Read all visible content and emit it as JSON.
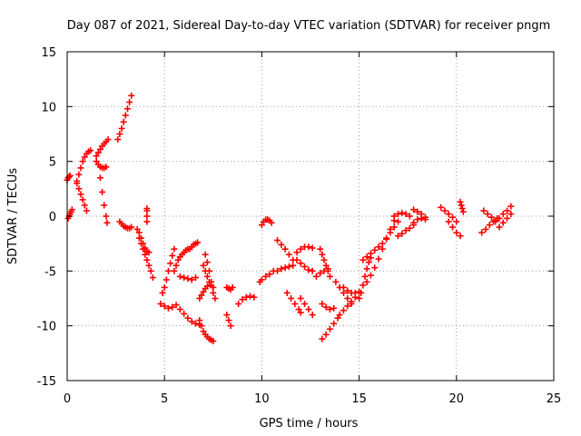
{
  "chart_data": {
    "type": "scatter",
    "title": "Day 087 of 2021, Sidereal Day-to-day VTEC variation (SDTVAR) for receiver pngm",
    "xlabel": "GPS time / hours",
    "ylabel": "SDTVAR / TECUs",
    "xlim": [
      0,
      25
    ],
    "ylim": [
      -15,
      15
    ],
    "xticks": [
      "0",
      "5",
      "10",
      "15",
      "20",
      "25"
    ],
    "yticks": [
      "-15",
      "-10",
      "-5",
      "0",
      "5",
      "10",
      "15"
    ],
    "xtick_values": [
      0,
      5,
      10,
      15,
      20,
      25
    ],
    "ytick_values": [
      -15,
      -10,
      -5,
      0,
      5,
      10,
      15
    ],
    "grid": true,
    "marker": "+",
    "series": [
      {
        "name": "SDTVAR",
        "color": "#ff0000",
        "arcs": [
          {
            "x": [
              0.0,
              0.05,
              0.1,
              0.15
            ],
            "y": [
              3.3,
              3.5,
              3.6,
              3.7
            ]
          },
          {
            "x": [
              0.05,
              0.1,
              0.15,
              0.2,
              0.25
            ],
            "y": [
              -0.2,
              0.0,
              0.2,
              0.4,
              0.6
            ]
          },
          {
            "x": [
              0.5,
              0.6,
              0.7,
              0.8,
              0.9,
              1.0,
              1.1,
              1.2
            ],
            "y": [
              3.2,
              3.8,
              4.4,
              5.0,
              5.4,
              5.7,
              5.9,
              6.0
            ]
          },
          {
            "x": [
              0.5,
              0.6,
              0.7,
              0.8,
              0.9,
              1.0
            ],
            "y": [
              3.0,
              2.5,
              2.0,
              1.5,
              1.0,
              0.5
            ]
          },
          {
            "x": [
              1.5,
              1.6,
              1.7,
              1.8,
              1.9,
              2.0,
              2.1
            ],
            "y": [
              5.5,
              5.8,
              6.1,
              6.4,
              6.6,
              6.8,
              7.0
            ]
          },
          {
            "x": [
              1.5,
              1.6,
              1.7,
              1.8,
              1.9,
              2.0
            ],
            "y": [
              5.0,
              4.7,
              4.5,
              4.4,
              4.4,
              4.5
            ]
          },
          {
            "x": [
              1.7,
              1.8,
              1.9,
              2.0,
              2.05
            ],
            "y": [
              3.5,
              2.2,
              1.0,
              0.0,
              -0.6
            ]
          },
          {
            "x": [
              2.6,
              2.7,
              2.8,
              2.9,
              3.0,
              3.1,
              3.2,
              3.3
            ],
            "y": [
              7.0,
              7.5,
              8.0,
              8.6,
              9.2,
              9.8,
              10.4,
              11.0
            ]
          },
          {
            "x": [
              2.7,
              2.8,
              2.9,
              3.0,
              3.1,
              3.2,
              3.3
            ],
            "y": [
              -0.5,
              -0.7,
              -0.9,
              -1.0,
              -1.1,
              -1.1,
              -1.0
            ]
          },
          {
            "x": [
              3.7,
              3.8,
              3.9,
              4.0,
              4.1,
              4.2,
              4.3,
              4.4
            ],
            "y": [
              -2.0,
              -2.5,
              -3.0,
              -3.5,
              -4.0,
              -4.5,
              -5.0,
              -5.6
            ]
          },
          {
            "x": [
              3.6,
              3.7,
              3.8,
              3.9,
              4.0,
              4.1,
              4.2
            ],
            "y": [
              -1.2,
              -1.5,
              -2.0,
              -2.5,
              -2.9,
              -3.2,
              -3.3
            ]
          },
          {
            "x": [
              4.1,
              4.1,
              4.1,
              4.1
            ],
            "y": [
              -0.5,
              0.0,
              0.5,
              0.7
            ]
          },
          {
            "x": [
              4.8,
              5.0,
              5.2,
              5.4,
              5.6
            ],
            "y": [
              -8.0,
              -8.2,
              -8.4,
              -8.3,
              -8.1
            ]
          },
          {
            "x": [
              4.9,
              5.0,
              5.1,
              5.2,
              5.3,
              5.4,
              5.5
            ],
            "y": [
              -7.0,
              -6.5,
              -5.8,
              -5.0,
              -4.3,
              -3.6,
              -3.0
            ]
          },
          {
            "x": [
              5.8,
              6.0,
              6.2,
              6.4,
              6.6,
              6.8
            ],
            "y": [
              -8.5,
              -8.9,
              -9.3,
              -9.6,
              -9.8,
              -9.9
            ]
          },
          {
            "x": [
              5.5,
              5.6,
              5.7,
              5.8,
              5.9,
              6.0,
              6.1,
              6.2
            ],
            "y": [
              -5.0,
              -4.5,
              -4.0,
              -3.7,
              -3.5,
              -3.3,
              -3.1,
              -3.0
            ]
          },
          {
            "x": [
              5.8,
              6.0,
              6.2,
              6.4,
              6.6
            ],
            "y": [
              -5.5,
              -5.6,
              -5.7,
              -5.8,
              -5.6
            ]
          },
          {
            "x": [
              6.3,
              6.4,
              6.5,
              6.6,
              6.7
            ],
            "y": [
              -3.0,
              -2.8,
              -2.6,
              -2.5,
              -2.4
            ]
          },
          {
            "x": [
              7.0,
              7.1,
              7.2,
              7.3,
              7.4,
              7.5
            ],
            "y": [
              -4.5,
              -5.0,
              -5.5,
              -6.0,
              -6.3,
              -6.5
            ]
          },
          {
            "x": [
              7.1,
              7.2,
              7.3,
              7.4,
              7.5,
              7.6
            ],
            "y": [
              -3.5,
              -4.2,
              -5.0,
              -6.0,
              -7.0,
              -7.5
            ]
          },
          {
            "x": [
              6.8,
              6.9,
              7.0,
              7.1,
              7.2,
              7.3,
              7.4,
              7.5
            ],
            "y": [
              -9.5,
              -10.0,
              -10.5,
              -10.8,
              -11.0,
              -11.2,
              -11.3,
              -11.4
            ]
          },
          {
            "x": [
              6.8,
              6.9,
              7.0,
              7.1,
              7.2
            ],
            "y": [
              -7.5,
              -7.2,
              -6.9,
              -6.6,
              -6.4
            ]
          },
          {
            "x": [
              8.2,
              8.3,
              8.4,
              8.5
            ],
            "y": [
              -6.5,
              -6.6,
              -6.7,
              -6.5
            ]
          },
          {
            "x": [
              8.2,
              8.3,
              8.4
            ],
            "y": [
              -9.0,
              -9.5,
              -10.0
            ]
          },
          {
            "x": [
              8.8,
              9.0,
              9.2,
              9.4,
              9.6
            ],
            "y": [
              -8.0,
              -7.6,
              -7.4,
              -7.3,
              -7.4
            ]
          },
          {
            "x": [
              9.9,
              10.0,
              10.2,
              10.4,
              10.6
            ],
            "y": [
              -6.0,
              -5.8,
              -5.5,
              -5.3,
              -5.0
            ]
          },
          {
            "x": [
              10.0,
              10.1,
              10.2,
              10.3,
              10.4,
              10.5
            ],
            "y": [
              -0.8,
              -0.5,
              -0.3,
              -0.3,
              -0.4,
              -0.6
            ]
          },
          {
            "x": [
              10.8,
              11.0,
              11.2,
              11.4,
              11.6
            ],
            "y": [
              -2.2,
              -2.6,
              -3.0,
              -3.5,
              -4.0
            ]
          },
          {
            "x": [
              10.8,
              11.0,
              11.2,
              11.4,
              11.6
            ],
            "y": [
              -5.0,
              -4.8,
              -4.7,
              -4.6,
              -4.5
            ]
          },
          {
            "x": [
              11.3,
              11.5,
              11.7,
              11.9,
              12.0
            ],
            "y": [
              -7.0,
              -7.5,
              -8.0,
              -8.5,
              -8.8
            ]
          },
          {
            "x": [
              11.8,
              12.0,
              12.2,
              12.4,
              12.6
            ],
            "y": [
              -4.0,
              -4.3,
              -4.6,
              -4.9,
              -5.0
            ]
          },
          {
            "x": [
              11.8,
              12.0,
              12.2,
              12.4,
              12.6
            ],
            "y": [
              -3.3,
              -3.0,
              -2.8,
              -2.8,
              -2.9
            ]
          },
          {
            "x": [
              12.0,
              12.2,
              12.4,
              12.6
            ],
            "y": [
              -7.5,
              -8.0,
              -8.5,
              -9.0
            ]
          },
          {
            "x": [
              12.8,
              13.0,
              13.2,
              13.4
            ],
            "y": [
              -5.5,
              -5.2,
              -5.0,
              -4.8
            ]
          },
          {
            "x": [
              13.0,
              13.1,
              13.2,
              13.3,
              13.4,
              13.5
            ],
            "y": [
              -3.0,
              -3.5,
              -4.0,
              -4.5,
              -5.0,
              -5.5
            ]
          },
          {
            "x": [
              13.1,
              13.3,
              13.5,
              13.7,
              13.9
            ],
            "y": [
              -11.2,
              -10.8,
              -10.3,
              -9.8,
              -9.3
            ]
          },
          {
            "x": [
              13.1,
              13.3,
              13.5,
              13.7
            ],
            "y": [
              -8.0,
              -8.3,
              -8.5,
              -8.4
            ]
          },
          {
            "x": [
              13.8,
              14.0,
              14.2,
              14.4,
              14.6
            ],
            "y": [
              -6.0,
              -6.5,
              -7.0,
              -7.5,
              -8.0
            ]
          },
          {
            "x": [
              14.0,
              14.2,
              14.4,
              14.6,
              14.8
            ],
            "y": [
              -9.0,
              -8.6,
              -8.2,
              -7.8,
              -7.4
            ]
          },
          {
            "x": [
              14.2,
              14.4,
              14.6,
              14.8,
              15.0
            ],
            "y": [
              -6.5,
              -6.8,
              -7.0,
              -7.0,
              -6.9
            ]
          },
          {
            "x": [
              15.0,
              15.1,
              15.2,
              15.3,
              15.4,
              15.5,
              15.6
            ],
            "y": [
              -7.5,
              -7.0,
              -6.3,
              -5.5,
              -4.8,
              -4.2,
              -3.8
            ]
          },
          {
            "x": [
              15.2,
              15.4,
              15.6,
              15.8,
              16.0
            ],
            "y": [
              -4.0,
              -3.7,
              -3.4,
              -3.1,
              -2.8
            ]
          },
          {
            "x": [
              15.4,
              15.6,
              15.8,
              16.0,
              16.2,
              16.4,
              16.6,
              16.8
            ],
            "y": [
              -6.0,
              -5.4,
              -4.7,
              -3.9,
              -3.0,
              -2.1,
              -1.2,
              -0.4
            ]
          },
          {
            "x": [
              16.2,
              16.4,
              16.6,
              16.8,
              17.0
            ],
            "y": [
              -2.5,
              -2.0,
              -1.5,
              -1.0,
              -0.5
            ]
          },
          {
            "x": [
              16.8,
              17.0,
              17.2,
              17.4,
              17.6
            ],
            "y": [
              0.0,
              0.2,
              0.3,
              0.2,
              0.0
            ]
          },
          {
            "x": [
              17.0,
              17.2,
              17.4,
              17.6,
              17.8
            ],
            "y": [
              -1.8,
              -1.6,
              -1.3,
              -1.1,
              -0.8
            ]
          },
          {
            "x": [
              17.8,
              18.0,
              18.2,
              18.4
            ],
            "y": [
              0.6,
              0.4,
              0.2,
              -0.1
            ]
          },
          {
            "x": [
              17.8,
              18.0,
              18.2,
              18.4
            ],
            "y": [
              -0.6,
              -0.3,
              -0.2,
              -0.3
            ]
          },
          {
            "x": [
              19.2,
              19.4,
              19.6,
              19.8,
              20.0
            ],
            "y": [
              0.8,
              0.5,
              0.2,
              -0.1,
              -0.5
            ]
          },
          {
            "x": [
              19.6,
              19.8,
              20.0,
              20.2
            ],
            "y": [
              -0.5,
              -1.0,
              -1.5,
              -1.8
            ]
          },
          {
            "x": [
              20.2,
              20.25,
              20.3,
              20.35
            ],
            "y": [
              1.3,
              1.0,
              0.7,
              0.4
            ]
          },
          {
            "x": [
              21.3,
              21.5,
              21.7,
              21.9,
              22.1
            ],
            "y": [
              -1.5,
              -1.2,
              -0.8,
              -0.5,
              -0.2
            ]
          },
          {
            "x": [
              21.4,
              21.6,
              21.8,
              22.0
            ],
            "y": [
              0.5,
              0.2,
              -0.1,
              -0.4
            ]
          },
          {
            "x": [
              22.0,
              22.2,
              22.4,
              22.6,
              22.8
            ],
            "y": [
              -0.5,
              -0.2,
              0.2,
              0.5,
              0.9
            ]
          },
          {
            "x": [
              22.2,
              22.4,
              22.6,
              22.8
            ],
            "y": [
              -1.0,
              -0.6,
              -0.2,
              0.2
            ]
          }
        ]
      }
    ]
  }
}
